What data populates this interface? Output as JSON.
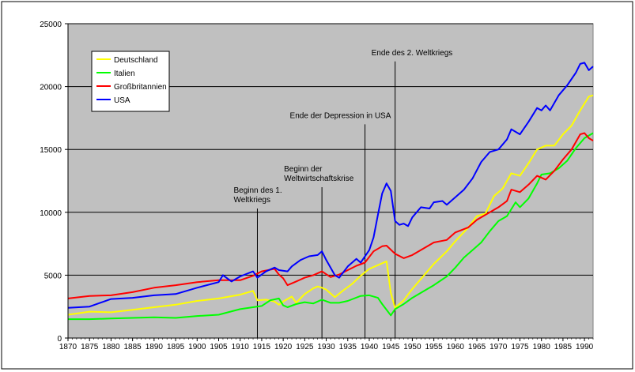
{
  "chart_data": {
    "type": "line",
    "title": "",
    "xlabel": "",
    "ylabel": "",
    "xlim": [
      1870,
      1992
    ],
    "ylim": [
      0,
      25000
    ],
    "grid": "horizontal",
    "legend_position": "top-left",
    "plot_background": "#c0c0c0",
    "x_ticks": [
      1870,
      1875,
      1880,
      1885,
      1890,
      1895,
      1900,
      1905,
      1910,
      1915,
      1920,
      1925,
      1930,
      1935,
      1940,
      1945,
      1950,
      1955,
      1960,
      1965,
      1970,
      1975,
      1980,
      1985,
      1990
    ],
    "y_ticks": [
      0,
      5000,
      10000,
      15000,
      20000,
      25000
    ],
    "series": [
      {
        "name": "Deutschland",
        "color": "#ffff00",
        "points": [
          [
            1870,
            1850
          ],
          [
            1875,
            2100
          ],
          [
            1880,
            2050
          ],
          [
            1885,
            2250
          ],
          [
            1890,
            2450
          ],
          [
            1895,
            2650
          ],
          [
            1900,
            2950
          ],
          [
            1905,
            3150
          ],
          [
            1910,
            3450
          ],
          [
            1913,
            3750
          ],
          [
            1914,
            3000
          ],
          [
            1916,
            3050
          ],
          [
            1918,
            2900
          ],
          [
            1919,
            2650
          ],
          [
            1920,
            2900
          ],
          [
            1922,
            3300
          ],
          [
            1923,
            2800
          ],
          [
            1925,
            3500
          ],
          [
            1927,
            3950
          ],
          [
            1928,
            4100
          ],
          [
            1929,
            4000
          ],
          [
            1930,
            3850
          ],
          [
            1932,
            3250
          ],
          [
            1934,
            3800
          ],
          [
            1936,
            4300
          ],
          [
            1938,
            4950
          ],
          [
            1940,
            5500
          ],
          [
            1942,
            5800
          ],
          [
            1944,
            6100
          ],
          [
            1945,
            3600
          ],
          [
            1946,
            2400
          ],
          [
            1948,
            3000
          ],
          [
            1950,
            3900
          ],
          [
            1952,
            4700
          ],
          [
            1955,
            5900
          ],
          [
            1958,
            6900
          ],
          [
            1960,
            7700
          ],
          [
            1963,
            8800
          ],
          [
            1965,
            9700
          ],
          [
            1967,
            9900
          ],
          [
            1969,
            11300
          ],
          [
            1971,
            11900
          ],
          [
            1973,
            13100
          ],
          [
            1975,
            12900
          ],
          [
            1977,
            13900
          ],
          [
            1979,
            15000
          ],
          [
            1981,
            15300
          ],
          [
            1983,
            15300
          ],
          [
            1985,
            16200
          ],
          [
            1987,
            16900
          ],
          [
            1989,
            18100
          ],
          [
            1991,
            19200
          ],
          [
            1992,
            19300
          ]
        ]
      },
      {
        "name": "Italien",
        "color": "#00ff00",
        "points": [
          [
            1870,
            1500
          ],
          [
            1875,
            1500
          ],
          [
            1880,
            1550
          ],
          [
            1885,
            1600
          ],
          [
            1890,
            1650
          ],
          [
            1895,
            1600
          ],
          [
            1900,
            1750
          ],
          [
            1905,
            1850
          ],
          [
            1910,
            2300
          ],
          [
            1915,
            2550
          ],
          [
            1917,
            3000
          ],
          [
            1919,
            3150
          ],
          [
            1920,
            2600
          ],
          [
            1921,
            2450
          ],
          [
            1923,
            2700
          ],
          [
            1925,
            2850
          ],
          [
            1927,
            2750
          ],
          [
            1929,
            3050
          ],
          [
            1931,
            2800
          ],
          [
            1933,
            2800
          ],
          [
            1935,
            2950
          ],
          [
            1938,
            3350
          ],
          [
            1940,
            3400
          ],
          [
            1942,
            3200
          ],
          [
            1943,
            2700
          ],
          [
            1945,
            1800
          ],
          [
            1946,
            2300
          ],
          [
            1948,
            2700
          ],
          [
            1950,
            3200
          ],
          [
            1953,
            3800
          ],
          [
            1955,
            4200
          ],
          [
            1958,
            4900
          ],
          [
            1960,
            5600
          ],
          [
            1962,
            6400
          ],
          [
            1964,
            7000
          ],
          [
            1966,
            7600
          ],
          [
            1968,
            8500
          ],
          [
            1970,
            9300
          ],
          [
            1972,
            9700
          ],
          [
            1974,
            10800
          ],
          [
            1975,
            10400
          ],
          [
            1977,
            11100
          ],
          [
            1979,
            12300
          ],
          [
            1980,
            13000
          ],
          [
            1982,
            13100
          ],
          [
            1984,
            13500
          ],
          [
            1986,
            14100
          ],
          [
            1988,
            15100
          ],
          [
            1990,
            15900
          ],
          [
            1992,
            16300
          ]
        ]
      },
      {
        "name": "Großbritannien",
        "color": "#ff0000",
        "points": [
          [
            1870,
            3150
          ],
          [
            1875,
            3350
          ],
          [
            1880,
            3400
          ],
          [
            1885,
            3650
          ],
          [
            1890,
            4000
          ],
          [
            1895,
            4200
          ],
          [
            1900,
            4450
          ],
          [
            1905,
            4600
          ],
          [
            1910,
            4600
          ],
          [
            1913,
            4950
          ],
          [
            1915,
            5300
          ],
          [
            1918,
            5500
          ],
          [
            1919,
            5050
          ],
          [
            1920,
            4750
          ],
          [
            1921,
            4200
          ],
          [
            1923,
            4500
          ],
          [
            1925,
            4800
          ],
          [
            1927,
            5000
          ],
          [
            1929,
            5300
          ],
          [
            1931,
            4850
          ],
          [
            1933,
            5050
          ],
          [
            1935,
            5400
          ],
          [
            1937,
            5750
          ],
          [
            1939,
            6000
          ],
          [
            1941,
            6900
          ],
          [
            1943,
            7300
          ],
          [
            1944,
            7350
          ],
          [
            1946,
            6700
          ],
          [
            1948,
            6350
          ],
          [
            1950,
            6600
          ],
          [
            1953,
            7200
          ],
          [
            1955,
            7600
          ],
          [
            1958,
            7800
          ],
          [
            1960,
            8400
          ],
          [
            1963,
            8800
          ],
          [
            1965,
            9400
          ],
          [
            1968,
            10000
          ],
          [
            1970,
            10400
          ],
          [
            1972,
            10900
          ],
          [
            1973,
            11800
          ],
          [
            1975,
            11600
          ],
          [
            1977,
            12200
          ],
          [
            1979,
            12900
          ],
          [
            1981,
            12600
          ],
          [
            1983,
            13300
          ],
          [
            1985,
            14200
          ],
          [
            1987,
            15000
          ],
          [
            1989,
            16200
          ],
          [
            1990,
            16300
          ],
          [
            1991,
            15900
          ],
          [
            1992,
            15700
          ]
        ]
      },
      {
        "name": "USA",
        "color": "#0000ff",
        "points": [
          [
            1870,
            2400
          ],
          [
            1875,
            2500
          ],
          [
            1880,
            3100
          ],
          [
            1885,
            3200
          ],
          [
            1890,
            3400
          ],
          [
            1895,
            3500
          ],
          [
            1900,
            4000
          ],
          [
            1905,
            4450
          ],
          [
            1906,
            5000
          ],
          [
            1908,
            4500
          ],
          [
            1910,
            4900
          ],
          [
            1913,
            5300
          ],
          [
            1914,
            4800
          ],
          [
            1916,
            5300
          ],
          [
            1918,
            5600
          ],
          [
            1919,
            5400
          ],
          [
            1921,
            5300
          ],
          [
            1922,
            5700
          ],
          [
            1924,
            6200
          ],
          [
            1926,
            6500
          ],
          [
            1928,
            6600
          ],
          [
            1929,
            6900
          ],
          [
            1930,
            6200
          ],
          [
            1932,
            5000
          ],
          [
            1933,
            4800
          ],
          [
            1935,
            5700
          ],
          [
            1937,
            6300
          ],
          [
            1938,
            6000
          ],
          [
            1940,
            7000
          ],
          [
            1941,
            8000
          ],
          [
            1942,
            9800
          ],
          [
            1943,
            11500
          ],
          [
            1944,
            12300
          ],
          [
            1945,
            11700
          ],
          [
            1946,
            9300
          ],
          [
            1947,
            9000
          ],
          [
            1948,
            9100
          ],
          [
            1949,
            8900
          ],
          [
            1950,
            9600
          ],
          [
            1952,
            10400
          ],
          [
            1954,
            10300
          ],
          [
            1955,
            10800
          ],
          [
            1957,
            10900
          ],
          [
            1958,
            10600
          ],
          [
            1960,
            11200
          ],
          [
            1962,
            11800
          ],
          [
            1964,
            12700
          ],
          [
            1966,
            14000
          ],
          [
            1968,
            14800
          ],
          [
            1970,
            15000
          ],
          [
            1972,
            15800
          ],
          [
            1973,
            16600
          ],
          [
            1974,
            16400
          ],
          [
            1975,
            16200
          ],
          [
            1977,
            17200
          ],
          [
            1979,
            18300
          ],
          [
            1980,
            18100
          ],
          [
            1981,
            18500
          ],
          [
            1982,
            18100
          ],
          [
            1984,
            19300
          ],
          [
            1986,
            20100
          ],
          [
            1988,
            21100
          ],
          [
            1989,
            21800
          ],
          [
            1990,
            21900
          ],
          [
            1991,
            21300
          ],
          [
            1992,
            21600
          ]
        ]
      }
    ],
    "event_lines": [
      {
        "year": 1914,
        "top_value": 10300,
        "label_lines": [
          "Beginn des 1.",
          "Weltkriegs"
        ]
      },
      {
        "year": 1929,
        "top_value": 12000,
        "label_lines": [
          "Beginn der",
          "Weltwirtschaftskrise"
        ]
      },
      {
        "year": 1939,
        "top_value": 17000,
        "label_lines": [
          "Ende der Depression in USA"
        ]
      },
      {
        "year": 1946,
        "top_value": 22000,
        "label_lines": [
          "Ende des 2. Weltkriegs"
        ]
      }
    ]
  }
}
